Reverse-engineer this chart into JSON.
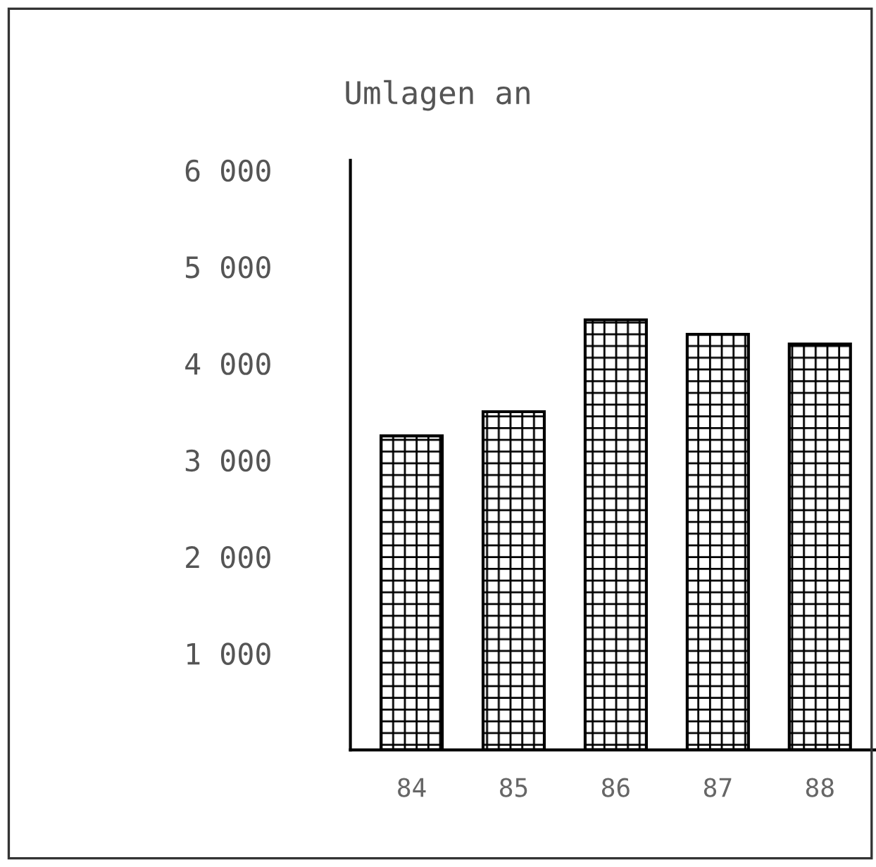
{
  "chart_data": {
    "type": "bar",
    "title": "Umlagen an",
    "categories": [
      "84",
      "85",
      "86",
      "87",
      "88"
    ],
    "values": [
      3250,
      3500,
      4450,
      4300,
      4200
    ],
    "color": "#000000",
    "ylim": [
      0,
      6100
    ],
    "yticks": [
      {
        "value": 0,
        "label": null
      },
      {
        "value": 1000,
        "label": "1 000"
      },
      {
        "value": 2000,
        "label": "2 000"
      },
      {
        "value": 3000,
        "label": "3 000"
      },
      {
        "value": 4000,
        "label": "4 000"
      },
      {
        "value": 5000,
        "label": "5 000"
      },
      {
        "value": 6000,
        "label": "6 000"
      }
    ],
    "grid": false,
    "legend": false
  }
}
